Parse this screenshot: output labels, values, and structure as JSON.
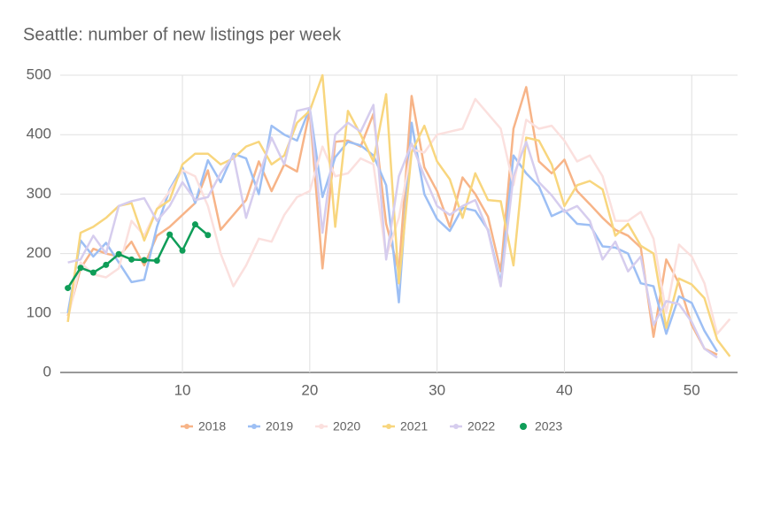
{
  "chart_data": {
    "type": "line",
    "title": "Seattle: number of new listings per week",
    "x": [
      1,
      2,
      3,
      4,
      5,
      6,
      7,
      8,
      9,
      10,
      11,
      12,
      13,
      14,
      15,
      16,
      17,
      18,
      19,
      20,
      21,
      22,
      23,
      24,
      25,
      26,
      27,
      28,
      29,
      30,
      31,
      32,
      33,
      34,
      35,
      36,
      37,
      38,
      39,
      40,
      41,
      42,
      43,
      44,
      45,
      46,
      47,
      48,
      49,
      50,
      51,
      52,
      53
    ],
    "series": [
      {
        "name": "2018",
        "color": "#f7b488",
        "values": [
          95,
          175,
          208,
          200,
          195,
          220,
          180,
          230,
          245,
          265,
          285,
          340,
          240,
          265,
          290,
          355,
          305,
          350,
          338,
          440,
          175,
          388,
          390,
          380,
          435,
          250,
          170,
          465,
          345,
          305,
          245,
          328,
          300,
          262,
          170,
          410,
          480,
          355,
          335,
          358,
          305,
          283,
          260,
          240,
          230,
          210,
          60,
          190,
          150,
          80,
          40,
          30,
          null
        ]
      },
      {
        "name": "2019",
        "color": "#9dbff4",
        "values": [
          100,
          222,
          195,
          218,
          185,
          152,
          156,
          245,
          308,
          345,
          285,
          357,
          320,
          368,
          360,
          300,
          415,
          400,
          390,
          445,
          295,
          362,
          388,
          382,
          365,
          315,
          118,
          420,
          300,
          258,
          238,
          277,
          272,
          240,
          150,
          365,
          335,
          313,
          263,
          273,
          250,
          248,
          212,
          210,
          200,
          150,
          145,
          65,
          128,
          117,
          70,
          35,
          null
        ]
      },
      {
        "name": "2020",
        "color": "#fbe0de",
        "values": [
          90,
          185,
          165,
          160,
          175,
          255,
          230,
          275,
          305,
          340,
          330,
          280,
          200,
          145,
          180,
          225,
          220,
          265,
          295,
          305,
          380,
          330,
          335,
          360,
          350,
          195,
          260,
          375,
          370,
          400,
          405,
          410,
          460,
          435,
          410,
          315,
          425,
          410,
          415,
          390,
          355,
          365,
          330,
          255,
          255,
          270,
          225,
          100,
          215,
          195,
          150,
          65,
          90
        ]
      },
      {
        "name": "2021",
        "color": "#f8d67e",
        "values": [
          85,
          235,
          245,
          260,
          280,
          285,
          222,
          275,
          290,
          350,
          368,
          368,
          350,
          360,
          380,
          388,
          350,
          365,
          420,
          440,
          500,
          245,
          440,
          400,
          355,
          468,
          150,
          370,
          415,
          355,
          325,
          260,
          335,
          290,
          288,
          180,
          395,
          390,
          350,
          280,
          315,
          322,
          308,
          230,
          250,
          213,
          200,
          75,
          158,
          148,
          125,
          55,
          27
        ]
      },
      {
        "name": "2022",
        "color": "#d6cdee",
        "values": [
          185,
          190,
          230,
          200,
          280,
          288,
          293,
          255,
          280,
          320,
          290,
          295,
          335,
          365,
          260,
          330,
          395,
          350,
          440,
          445,
          235,
          400,
          420,
          405,
          450,
          190,
          330,
          385,
          330,
          280,
          265,
          280,
          290,
          238,
          145,
          330,
          388,
          320,
          298,
          270,
          280,
          255,
          190,
          220,
          170,
          195,
          80,
          120,
          115,
          85,
          40,
          25,
          null
        ]
      },
      {
        "name": "2023",
        "color": "#0f9d58",
        "values": [
          142,
          176,
          168,
          181,
          199,
          190,
          189,
          188,
          232,
          205,
          249,
          231,
          null,
          null,
          null,
          null,
          null,
          null,
          null,
          null,
          null,
          null,
          null,
          null,
          null,
          null,
          null,
          null,
          null,
          null,
          null,
          null,
          null,
          null,
          null,
          null,
          null,
          null,
          null,
          null,
          null,
          null,
          null,
          null,
          null,
          null,
          null,
          null,
          null,
          null,
          null,
          null,
          null
        ],
        "markers": true
      }
    ],
    "xlim": [
      0.4,
      53.6
    ],
    "ylim": [
      0,
      500
    ],
    "xticks": [
      10,
      20,
      30,
      40,
      50
    ],
    "yticks": [
      0,
      100,
      200,
      300,
      400,
      500
    ],
    "grid": true
  }
}
